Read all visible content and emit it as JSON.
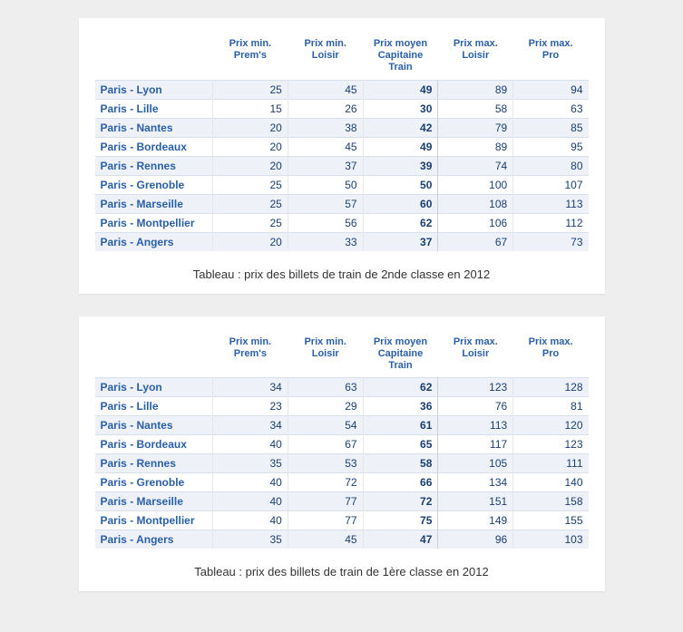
{
  "columns": [
    "Prix min. Prem's",
    "Prix min. Loisir",
    "Prix moyen Capitaine Train",
    "Prix max. Loisir",
    "Prix max. Pro"
  ],
  "tables": [
    {
      "caption": "Tableau : prix des billets de train de 2nde classe en 2012",
      "rows": [
        {
          "route": "Paris - Lyon",
          "v": [
            25,
            45,
            49,
            89,
            94
          ]
        },
        {
          "route": "Paris - Lille",
          "v": [
            15,
            26,
            30,
            58,
            63
          ]
        },
        {
          "route": "Paris - Nantes",
          "v": [
            20,
            38,
            42,
            79,
            85
          ]
        },
        {
          "route": "Paris - Bordeaux",
          "v": [
            20,
            45,
            49,
            89,
            95
          ]
        },
        {
          "route": "Paris - Rennes",
          "v": [
            20,
            37,
            39,
            74,
            80
          ]
        },
        {
          "route": "Paris - Grenoble",
          "v": [
            25,
            50,
            50,
            100,
            107
          ]
        },
        {
          "route": "Paris - Marseille",
          "v": [
            25,
            57,
            60,
            108,
            113
          ]
        },
        {
          "route": "Paris - Montpellier",
          "v": [
            25,
            56,
            62,
            106,
            112
          ]
        },
        {
          "route": "Paris - Angers",
          "v": [
            20,
            33,
            37,
            67,
            73
          ]
        }
      ]
    },
    {
      "caption": "Tableau : prix des billets de train de 1ère classe en 2012",
      "rows": [
        {
          "route": "Paris - Lyon",
          "v": [
            34,
            63,
            62,
            123,
            128
          ]
        },
        {
          "route": "Paris - Lille",
          "v": [
            23,
            29,
            36,
            76,
            81
          ]
        },
        {
          "route": "Paris - Nantes",
          "v": [
            34,
            54,
            61,
            113,
            120
          ]
        },
        {
          "route": "Paris - Bordeaux",
          "v": [
            40,
            67,
            65,
            117,
            123
          ]
        },
        {
          "route": "Paris - Rennes",
          "v": [
            35,
            53,
            58,
            105,
            111
          ]
        },
        {
          "route": "Paris - Grenoble",
          "v": [
            40,
            72,
            66,
            134,
            140
          ]
        },
        {
          "route": "Paris - Marseille",
          "v": [
            40,
            77,
            72,
            151,
            158
          ]
        },
        {
          "route": "Paris - Montpellier",
          "v": [
            40,
            77,
            75,
            149,
            155
          ]
        },
        {
          "route": "Paris - Angers",
          "v": [
            35,
            45,
            47,
            96,
            103
          ]
        }
      ]
    }
  ],
  "style": {
    "type": "table",
    "header_color": "#2a5fa8",
    "route_color": "#2a5fa8",
    "stripe_color": "#eef2f8",
    "background_color": "#ffffff",
    "page_background": "#eeeeee",
    "caption_color": "#333333",
    "font_family": "Arial",
    "header_fontsize_pt": 8,
    "cell_fontsize_pt": 9,
    "caption_fontsize_pt": 10,
    "moyen_column_bold": true
  }
}
